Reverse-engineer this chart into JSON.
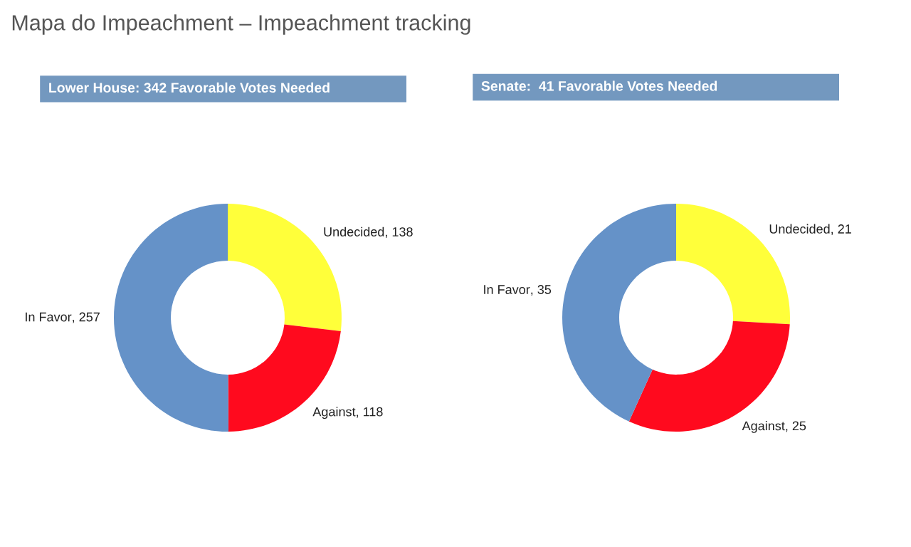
{
  "chart_data": [
    {
      "type": "donut",
      "title": "Mapa do Impeachment – Impeachment tracking",
      "subtitle": "Lower House: 342 Favorable Votes Needed",
      "categories": [
        "Undecided",
        "Against",
        "In Favor"
      ],
      "values": [
        138,
        118,
        257
      ],
      "value_labels": [
        ", 138",
        ", 118",
        ", 257"
      ],
      "colors": [
        "#ffff3a",
        "#ff0a1e",
        "#6592c8"
      ],
      "legend": false
    },
    {
      "type": "donut",
      "subtitle": "Senate:  41 Favorable Votes Needed",
      "categories": [
        "Undecided",
        "Against",
        "In Favor"
      ],
      "values": [
        21,
        25,
        35
      ],
      "value_labels": [
        ", 21",
        ", 25",
        ", 35"
      ],
      "colors": [
        "#ffff3a",
        "#ff0a1e",
        "#6592c8"
      ],
      "legend": false
    }
  ]
}
